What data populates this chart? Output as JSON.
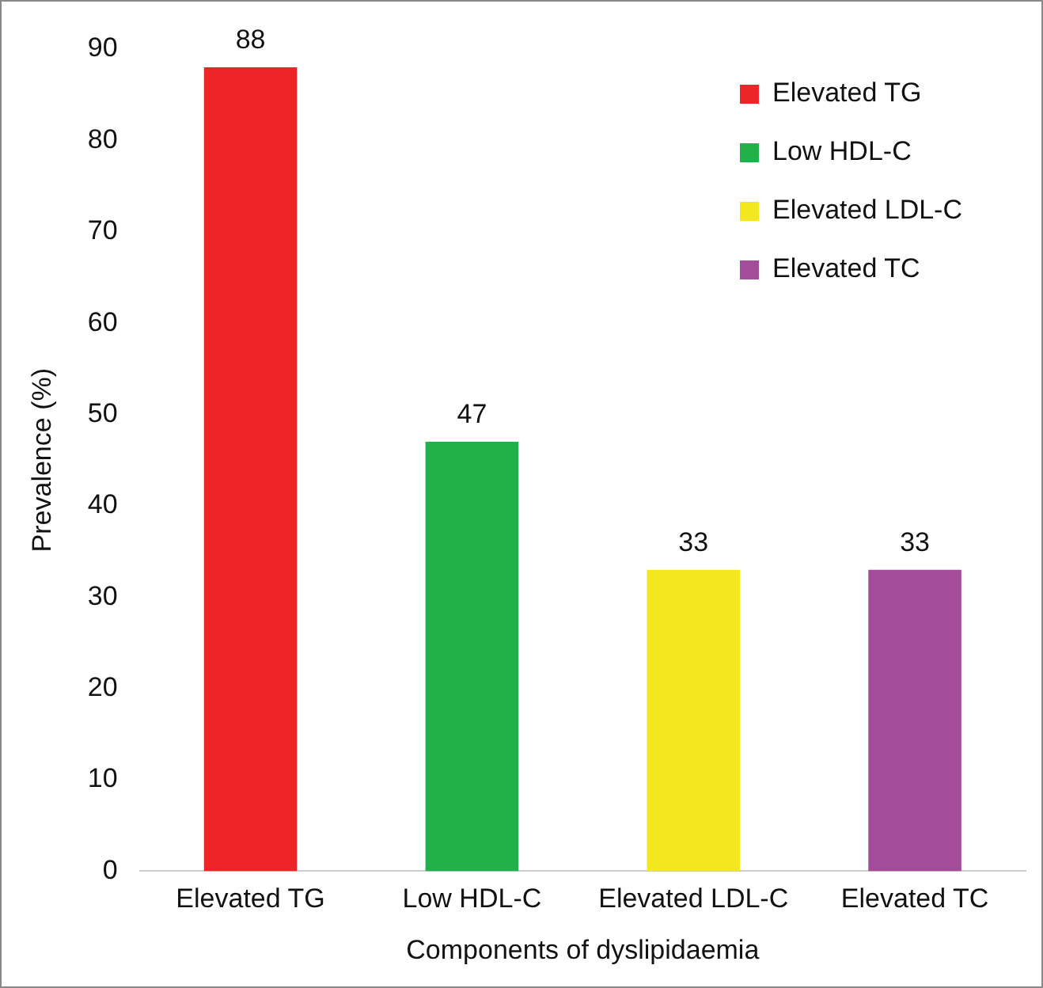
{
  "chart_data": {
    "type": "bar",
    "xlabel": "Components of dyslipidaemia",
    "ylabel": "Prevalence (%)",
    "categories": [
      "Elevated TG",
      "Low HDL-C",
      "Elevated LDL-C",
      "Elevated TC"
    ],
    "series": [
      {
        "name": "Elevated TG",
        "color": "#ee2526",
        "values": [
          88,
          null,
          null,
          null
        ]
      },
      {
        "name": "Low HDL-C",
        "color": "#22b04b",
        "values": [
          null,
          47,
          null,
          null
        ]
      },
      {
        "name": "Elevated LDL-C",
        "color": "#f2e81d",
        "values": [
          null,
          null,
          33,
          null
        ]
      },
      {
        "name": "Elevated TC",
        "color": "#a54b9c",
        "values": [
          null,
          null,
          null,
          33
        ]
      }
    ],
    "ylim": [
      0,
      90
    ],
    "yticks": [
      0,
      10,
      20,
      30,
      40,
      50,
      60,
      70,
      80,
      90
    ],
    "grid": false,
    "legend": "top right",
    "data_labels": true
  }
}
